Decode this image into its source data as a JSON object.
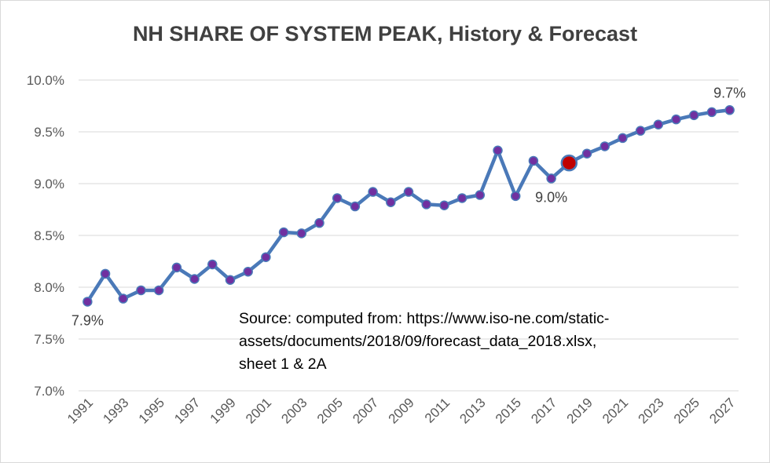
{
  "chart_data": {
    "type": "line",
    "title": "NH SHARE OF SYSTEM PEAK, History & Forecast",
    "xlabel": "",
    "ylabel": "",
    "ylim": [
      7.0,
      10.0
    ],
    "yticks": [
      "7.0%",
      "7.5%",
      "8.0%",
      "8.5%",
      "9.0%",
      "9.5%",
      "10.0%"
    ],
    "ytick_values": [
      7.0,
      7.5,
      8.0,
      8.5,
      9.0,
      9.5,
      10.0
    ],
    "xtick_labels": [
      "1991",
      "1993",
      "1995",
      "1997",
      "1999",
      "2001",
      "2003",
      "2005",
      "2007",
      "2009",
      "2011",
      "2013",
      "2015",
      "2017",
      "2019",
      "2021",
      "2023",
      "2025",
      "2027"
    ],
    "grid": true,
    "x": [
      1991,
      1992,
      1993,
      1994,
      1995,
      1996,
      1997,
      1998,
      1999,
      2000,
      2001,
      2002,
      2003,
      2004,
      2005,
      2006,
      2007,
      2008,
      2009,
      2010,
      2011,
      2012,
      2013,
      2014,
      2015,
      2016,
      2017,
      2018,
      2019,
      2020,
      2021,
      2022,
      2023,
      2024,
      2025,
      2026,
      2027
    ],
    "series": [
      {
        "values": [
          7.86,
          8.13,
          7.89,
          7.97,
          7.97,
          8.19,
          8.08,
          8.22,
          8.07,
          8.15,
          8.29,
          8.53,
          8.52,
          8.62,
          8.86,
          8.78,
          8.92,
          8.82,
          8.92,
          8.8,
          8.79,
          8.86,
          8.89,
          9.32,
          8.88,
          9.22,
          9.05,
          9.2,
          9.29,
          9.36,
          9.44,
          9.51,
          9.57,
          9.62,
          9.66,
          9.69,
          9.71
        ],
        "color": "#4a79b8",
        "marker_color": "#7030a0",
        "highlight_x": 2018,
        "highlight_color": "#c00000"
      }
    ],
    "data_labels": [
      {
        "x": 1991,
        "text": "7.9%",
        "position": "below"
      },
      {
        "x": 2017,
        "text": "9.0%",
        "position": "below"
      },
      {
        "x": 2027,
        "text": "9.7%",
        "position": "above"
      }
    ],
    "annotation": {
      "lines": [
        "Source: computed from:  https://www.iso-ne.com/static-",
        "assets/documents/2018/09/forecast_data_2018.xlsx,",
        "sheet 1 & 2A"
      ]
    },
    "colors": {
      "grid": "#d9d9d9",
      "line": "#4a79b8",
      "marker": "#7030a0",
      "highlight": "#c00000",
      "tick_text": "#595959",
      "title_text": "#404040"
    }
  }
}
